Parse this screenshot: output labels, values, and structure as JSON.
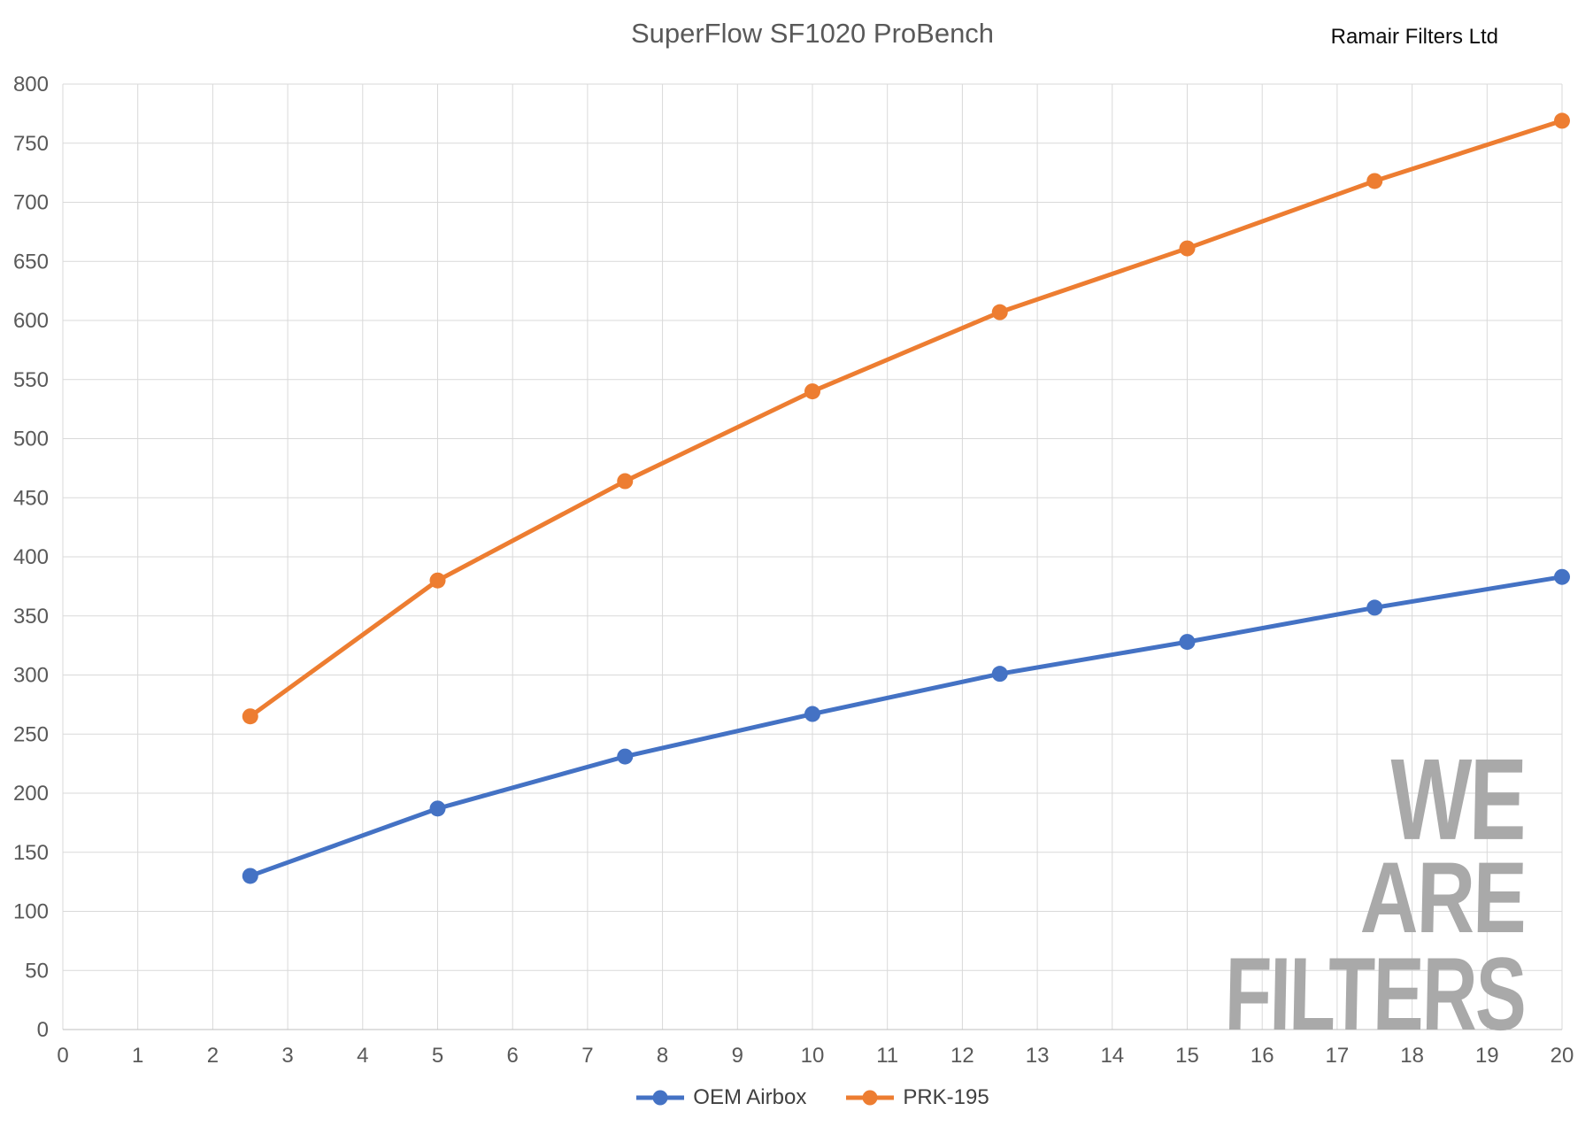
{
  "header": {
    "brand": "Ramair Filters Ltd"
  },
  "watermark": {
    "lines": [
      "WE",
      "ARE",
      "FILTERS"
    ]
  },
  "chart_data": {
    "type": "line",
    "title": "SuperFlow SF1020 ProBench",
    "xlabel": "",
    "ylabel": "",
    "x": [
      2.5,
      5,
      7.5,
      10,
      12.5,
      15,
      17.5,
      20
    ],
    "series": [
      {
        "name": "OEM Airbox",
        "color": "#4472C4",
        "values": [
          130,
          187,
          231,
          267,
          301,
          328,
          357,
          383
        ]
      },
      {
        "name": "PRK-195",
        "color": "#ED7D31",
        "values": [
          265,
          380,
          464,
          540,
          607,
          661,
          718,
          769
        ]
      }
    ],
    "xlim": [
      0,
      20
    ],
    "ylim": [
      0,
      800
    ],
    "x_ticks": [
      0,
      1,
      2,
      3,
      4,
      5,
      6,
      7,
      8,
      9,
      10,
      11,
      12,
      13,
      14,
      15,
      16,
      17,
      18,
      19,
      20
    ],
    "y_ticks": [
      0,
      50,
      100,
      150,
      200,
      250,
      300,
      350,
      400,
      450,
      500,
      550,
      600,
      650,
      700,
      750,
      800
    ],
    "grid": true,
    "legend_position": "bottom",
    "colors": {
      "gridline": "#d9d9d9",
      "axis_line": "#bfbfbf",
      "axis_text": "#595959",
      "title_text": "#595959",
      "watermark": "#a9a9a9"
    }
  }
}
